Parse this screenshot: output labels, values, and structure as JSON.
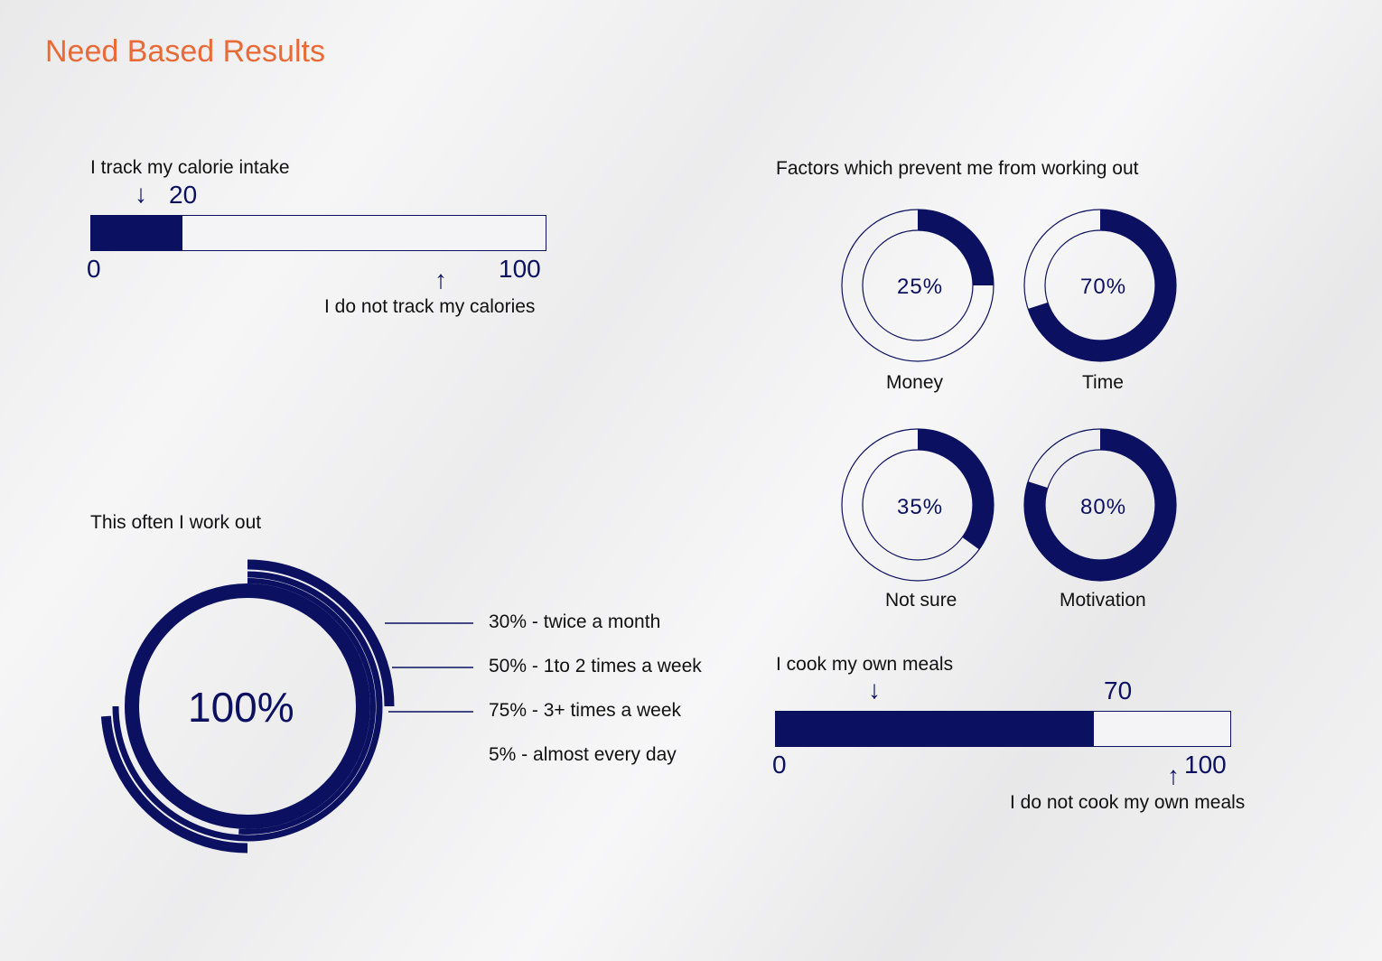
{
  "title": "Need Based Results",
  "colors": {
    "accent": "#ea6a37",
    "navy": "#0b1160",
    "track": "#f4f4f6"
  },
  "icons": {
    "down": "arrow-down-icon",
    "up": "arrow-up-icon"
  },
  "chart_data": [
    {
      "type": "bar",
      "title": "I track my calorie intake",
      "value": 20,
      "value_label": "20",
      "min_label": "0",
      "max_label": "100",
      "xlim": [
        0,
        100
      ],
      "annotation": "I do not track my calories"
    },
    {
      "type": "pie",
      "title": "Factors which prevent me from working out",
      "items": [
        {
          "label": "Money",
          "value": 25,
          "pct_label": "25%"
        },
        {
          "label": "Time",
          "value": 70,
          "pct_label": "70%"
        },
        {
          "label": "Not sure",
          "value": 35,
          "pct_label": "35%"
        },
        {
          "label": "Motivation",
          "value": 80,
          "pct_label": "80%"
        }
      ]
    },
    {
      "type": "pie",
      "title": "This often I work out",
      "center_label": "100%",
      "rings": [
        {
          "label": "30% - twice a month",
          "value": 30
        },
        {
          "label": "50% - 1to 2 times a week",
          "value": 50
        },
        {
          "label": "75% - 3+ times a week",
          "value": 75
        },
        {
          "label": "5% - almost every day",
          "value": 5
        }
      ]
    },
    {
      "type": "bar",
      "title": "I cook my own meals",
      "value": 70,
      "value_label": "70",
      "min_label": "0",
      "max_label": "100",
      "xlim": [
        0,
        100
      ],
      "annotation": "I do not cook my own meals"
    }
  ]
}
